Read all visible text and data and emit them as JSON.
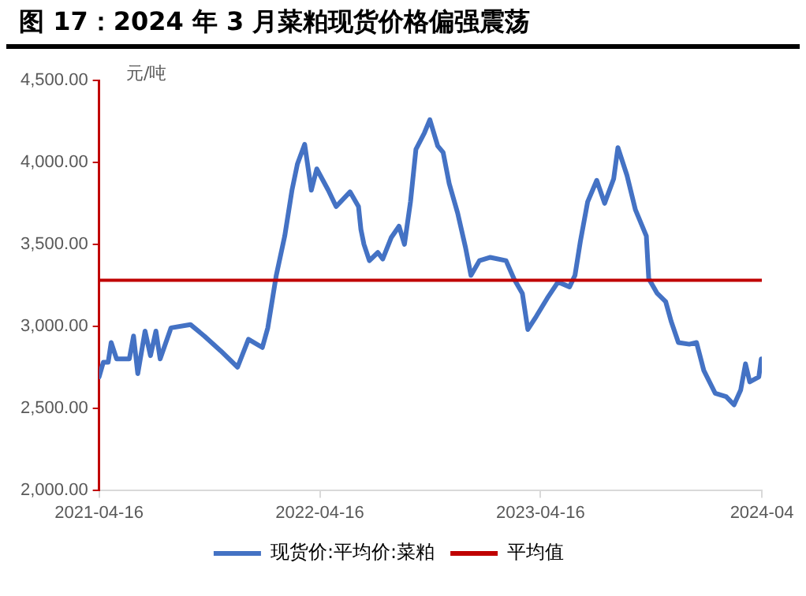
{
  "chart_data": {
    "type": "line",
    "title": "图 17：2024 年 3 月菜粕现货价格偏强震荡",
    "ylabel": "元/吨",
    "x": [
      "2021-04-16",
      "2021-04-23",
      "2021-05-01",
      "2021-05-06",
      "2021-05-15",
      "2021-06-05",
      "2021-06-12",
      "2021-06-19",
      "2021-07-01",
      "2021-07-10",
      "2021-07-19",
      "2021-07-26",
      "2021-08-13",
      "2021-09-14",
      "2021-10-07",
      "2021-11-03",
      "2021-12-01",
      "2021-12-19",
      "2022-01-11",
      "2022-01-20",
      "2022-02-03",
      "2022-02-17",
      "2022-03-01",
      "2022-03-10",
      "2022-03-22",
      "2022-04-02",
      "2022-04-11",
      "2022-04-30",
      "2022-05-13",
      "2022-06-05",
      "2022-06-19",
      "2022-06-23",
      "2022-06-28",
      "2022-07-07",
      "2022-07-21",
      "2022-07-29",
      "2022-08-12",
      "2022-08-25",
      "2022-09-03",
      "2022-09-13",
      "2022-09-22",
      "2022-10-06",
      "2022-10-15",
      "2022-10-28",
      "2022-11-06",
      "2022-11-16",
      "2022-11-30",
      "2022-12-13",
      "2022-12-22",
      "2023-01-05",
      "2023-01-23",
      "2023-02-18",
      "2023-03-03",
      "2023-03-17",
      "2023-03-26",
      "2023-04-09",
      "2023-04-27",
      "2023-05-15",
      "2023-06-03",
      "2023-06-12",
      "2023-06-21",
      "2023-07-03",
      "2023-07-18",
      "2023-07-31",
      "2023-08-15",
      "2023-08-22",
      "2023-09-06",
      "2023-09-20",
      "2023-10-08",
      "2023-10-12",
      "2023-10-26",
      "2023-11-09",
      "2023-11-18",
      "2023-11-30",
      "2023-12-18",
      "2023-12-30",
      "2024-01-11",
      "2024-01-30",
      "2024-02-17",
      "2024-03-01",
      "2024-03-12",
      "2024-03-20",
      "2024-03-27",
      "2024-04-11",
      "2024-04-15"
    ],
    "series": [
      {
        "name": "现货价:平均价:菜粕",
        "color": "#4472c4",
        "values": [
          2690,
          2780,
          2780,
          2900,
          2800,
          2800,
          2940,
          2710,
          2970,
          2820,
          2970,
          2800,
          2990,
          3010,
          2940,
          2850,
          2750,
          2920,
          2870,
          2990,
          3310,
          3550,
          3830,
          3990,
          4110,
          3830,
          3960,
          3830,
          3730,
          3820,
          3730,
          3590,
          3500,
          3400,
          3450,
          3410,
          3540,
          3610,
          3500,
          3760,
          4080,
          4180,
          4260,
          4100,
          4060,
          3870,
          3690,
          3480,
          3310,
          3400,
          3420,
          3400,
          3290,
          3200,
          2980,
          3060,
          3170,
          3270,
          3240,
          3310,
          3520,
          3760,
          3890,
          3750,
          3900,
          4090,
          3920,
          3710,
          3550,
          3290,
          3200,
          3150,
          3030,
          2900,
          2890,
          2900,
          2730,
          2590,
          2570,
          2520,
          2610,
          2770,
          2660,
          2690,
          2800
        ]
      }
    ],
    "ref_lines": [
      {
        "axis": "y",
        "value": 3280,
        "label": "平均值",
        "color": "#c00000"
      }
    ],
    "xlim": [
      "2021-04-16",
      "2024-04-16"
    ],
    "xticks": [
      "2021-04-16",
      "2022-04-16",
      "2023-04-16",
      {
        "value": "2024-04-16",
        "label": "2024-04"
      }
    ],
    "ylim": [
      2000,
      4500
    ],
    "yticks": [
      {
        "value": 2000,
        "label": "2,000.00"
      },
      {
        "value": 2500,
        "label": "2,500.00"
      },
      {
        "value": 3000,
        "label": "3,000.00"
      },
      {
        "value": 3500,
        "label": "3,500.00"
      },
      {
        "value": 4000,
        "label": "4,000.00"
      },
      {
        "value": 4500,
        "label": "4,500.00"
      }
    ],
    "grid": false,
    "legend": "bottom",
    "marker": "none",
    "line_style": "solid"
  }
}
